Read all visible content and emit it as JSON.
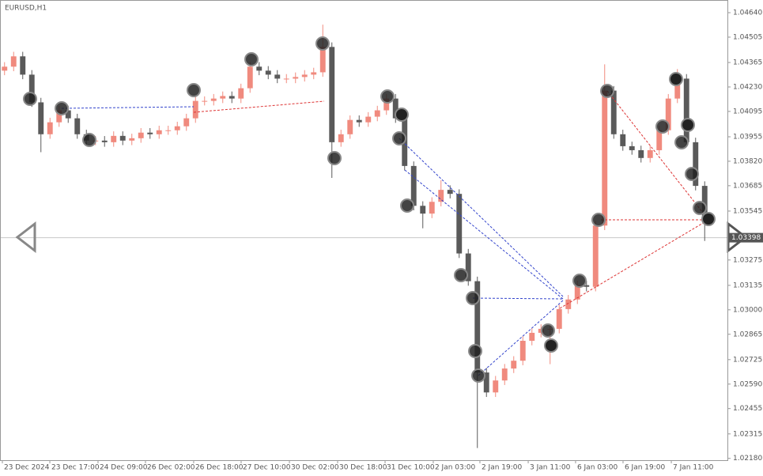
{
  "chart_data": {
    "type": "candlestick",
    "title": "EURUSD,H1",
    "up_color": "#f08a7e",
    "down_color": "#5a5a5a",
    "ylim": [
      1.0217,
      1.0471
    ],
    "xlim": [
      0,
      80
    ],
    "current_price": 1.03398,
    "yticks": [
      {
        "value": 1.0464,
        "label": "1.04640"
      },
      1.04505,
      1.04365,
      {
        "value": 1.0423,
        "label": "1.04230"
      },
      1.04095,
      1.03955,
      {
        "value": 1.0382,
        "label": "1.03820"
      },
      1.03685,
      1.03545,
      1.03275,
      1.03135,
      {
        "value": 1.03,
        "label": "1.03000"
      },
      1.02865,
      1.02725,
      {
        "value": 1.0259,
        "label": "1.02590"
      },
      1.02455,
      1.02315,
      {
        "value": 1.0218,
        "label": "1.02180"
      }
    ],
    "xticks": [
      {
        "value": 0.26,
        "label": "23 Dec 2024"
      },
      {
        "value": 5.48,
        "label": "23 Dec 17:00"
      },
      {
        "value": 10.78,
        "label": "24 Dec 09:00"
      },
      {
        "value": 16,
        "label": "26 Dec 02:00"
      },
      {
        "value": 21.3,
        "label": "26 Dec 18:00"
      },
      {
        "value": 26.52,
        "label": "27 Dec 10:00"
      },
      {
        "value": 31.83,
        "label": "30 Dec 02:00"
      },
      {
        "value": 37.13,
        "label": "30 Dec 18:00"
      },
      {
        "value": 42.35,
        "label": "31 Dec 10:00"
      },
      {
        "value": 47.65,
        "label": "2 Jan 03:00"
      },
      {
        "value": 52.78,
        "label": "2 Jan 19:00"
      },
      {
        "value": 58.09,
        "label": "3 Jan 11:00"
      },
      {
        "value": 63.3,
        "label": "6 Jan 03:00"
      },
      {
        "value": 68.52,
        "label": "6 Jan 19:00"
      },
      {
        "value": 73.83,
        "label": "7 Jan 11:00"
      }
    ],
    "open": [
      1.0432,
      1.04342,
      1.04399,
      1.04298,
      1.04145,
      1.03969,
      1.04035,
      1.04101,
      1.04057,
      1.03969,
      1.03934,
      1.03934,
      1.03925,
      1.0396,
      1.03934,
      1.03947,
      1.03978,
      1.03969,
      1.03991,
      1.03991,
      1.04013,
      1.04057,
      1.04153,
      1.04153,
      1.04166,
      1.0418,
      1.04166,
      1.04223,
      1.04342,
      1.0432,
      1.04298,
      1.04276,
      1.04276,
      1.04285,
      1.04298,
      1.04311,
      1.04451,
      1.03925,
      1.03969,
      1.04048,
      1.04035,
      1.04066,
      1.04101,
      1.04166,
      1.04057,
      1.03794,
      1.03574,
      1.03531,
      1.03596,
      1.03662,
      1.0364,
      1.03311,
      1.03158,
      1.02654,
      1.02544,
      1.0261,
      1.02676,
      1.02719,
      1.02829,
      1.02873,
      1.02895,
      1.02895,
      1.03004,
      1.03057,
      1.03136,
      1.03127,
      1.03465,
      1.0421,
      1.03969,
      1.03903,
      1.03881,
      1.03838,
      1.03881,
      1.03991,
      1.04166,
      1.04276,
      1.03925,
      1.03684
    ],
    "high": [
      1.04367,
      1.04424,
      1.04424,
      1.04323,
      1.0417,
      1.0406,
      1.04126,
      1.04126,
      1.04082,
      1.03994,
      1.03959,
      1.03959,
      1.03985,
      1.03985,
      1.03972,
      1.04003,
      1.04003,
      1.04016,
      1.04016,
      1.04038,
      1.04082,
      1.04178,
      1.04178,
      1.04191,
      1.04205,
      1.04205,
      1.04248,
      1.04367,
      1.04367,
      1.04345,
      1.04323,
      1.04301,
      1.0431,
      1.04323,
      1.04336,
      1.04574,
      1.04476,
      1.03994,
      1.04073,
      1.04073,
      1.04091,
      1.04126,
      1.04191,
      1.04191,
      1.04082,
      1.03819,
      1.03599,
      1.03621,
      1.03715,
      1.03687,
      1.03665,
      1.03336,
      1.03183,
      1.02679,
      1.02635,
      1.02701,
      1.02744,
      1.02854,
      1.02898,
      1.0292,
      1.0292,
      1.03029,
      1.03082,
      1.03161,
      1.03161,
      1.0349,
      1.04355,
      1.04235,
      1.03994,
      1.03928,
      1.03906,
      1.03906,
      1.04016,
      1.04191,
      1.04329,
      1.04301,
      1.0395,
      1.03709
    ],
    "low": [
      1.04295,
      1.04317,
      1.04273,
      1.0412,
      1.0387,
      1.03944,
      1.0401,
      1.04032,
      1.03944,
      1.03909,
      1.03909,
      1.039,
      1.039,
      1.03909,
      1.03909,
      1.03922,
      1.03944,
      1.03944,
      1.03966,
      1.03966,
      1.03988,
      1.04032,
      1.04128,
      1.04128,
      1.04141,
      1.04141,
      1.04141,
      1.04198,
      1.04295,
      1.04273,
      1.04251,
      1.04251,
      1.04251,
      1.0426,
      1.04273,
      1.04286,
      1.03728,
      1.039,
      1.03944,
      1.0401,
      1.0401,
      1.04041,
      1.04076,
      1.04032,
      1.03769,
      1.03549,
      1.0345,
      1.03506,
      1.03571,
      1.03615,
      1.03286,
      1.03133,
      1.02237,
      1.02519,
      1.02519,
      1.02585,
      1.02651,
      1.02694,
      1.02804,
      1.02848,
      1.027,
      1.0287,
      1.02979,
      1.03032,
      1.03102,
      1.03102,
      1.0344,
      1.03944,
      1.03878,
      1.03856,
      1.03813,
      1.03813,
      1.03856,
      1.03966,
      1.04141,
      1.039,
      1.03659,
      1.0338
    ],
    "close": [
      1.04342,
      1.04399,
      1.04298,
      1.04145,
      1.03969,
      1.04035,
      1.04101,
      1.04057,
      1.03969,
      1.03934,
      1.03934,
      1.03925,
      1.0396,
      1.03934,
      1.03947,
      1.03978,
      1.03969,
      1.03991,
      1.03991,
      1.04013,
      1.04057,
      1.04153,
      1.04153,
      1.04166,
      1.0418,
      1.04166,
      1.04223,
      1.04342,
      1.0432,
      1.04298,
      1.04276,
      1.04276,
      1.04285,
      1.04298,
      1.04311,
      1.04451,
      1.03925,
      1.03969,
      1.04048,
      1.04035,
      1.04066,
      1.04101,
      1.04166,
      1.04057,
      1.03794,
      1.03574,
      1.03531,
      1.03596,
      1.03662,
      1.0364,
      1.03311,
      1.03158,
      1.02654,
      1.02544,
      1.0261,
      1.02676,
      1.02719,
      1.02829,
      1.02873,
      1.02895,
      1.02895,
      1.03004,
      1.03057,
      1.03136,
      1.03127,
      1.03465,
      1.0421,
      1.03969,
      1.03903,
      1.03881,
      1.03838,
      1.03881,
      1.03991,
      1.04166,
      1.04276,
      1.03925,
      1.03684,
      1.03487
    ]
  }
}
